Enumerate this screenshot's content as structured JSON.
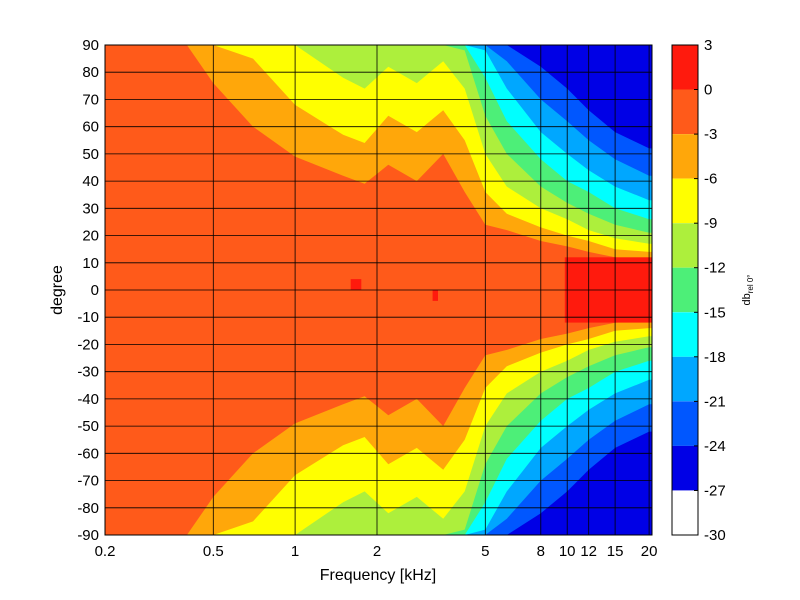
{
  "chart_data": {
    "type": "heatmap",
    "xlabel": "Frequency [kHz]",
    "ylabel": "degree",
    "x_scale": "log",
    "xlim": [
      0.2,
      20.5
    ],
    "ylim": [
      -90,
      90
    ],
    "x_ticks": [
      0.2,
      0.5,
      1,
      2,
      5,
      8,
      10,
      12,
      15,
      20
    ],
    "x_tick_labels": [
      "0.2",
      "0.5",
      "1",
      "2",
      "5",
      "8",
      "10",
      "12",
      "15",
      "20"
    ],
    "y_ticks": [
      90,
      80,
      70,
      60,
      50,
      40,
      30,
      20,
      10,
      0,
      -10,
      -20,
      -30,
      -40,
      -50,
      -60,
      -70,
      -80,
      -90
    ],
    "y_tick_labels": [
      "90",
      "80",
      "70",
      "60",
      "50",
      "40",
      "30",
      "20",
      "10",
      "0",
      "-10",
      "-20",
      "-30",
      "-40",
      "-50",
      "-60",
      "-70",
      "-80",
      "-90"
    ],
    "grid": true,
    "colorbar": {
      "label": "db",
      "label_sub": "rel 0°",
      "levels": [
        3,
        0,
        -3,
        -6,
        -9,
        -12,
        -15,
        -18,
        -21,
        -24,
        -27,
        -30
      ],
      "level_labels": [
        "3",
        "0",
        "-3",
        "-6",
        "-9",
        "-12",
        "-15",
        "-18",
        "-21",
        "-24",
        "-27",
        "-30"
      ],
      "band_colors": [
        "#ff1a0d",
        "#ff5a1a",
        "#ffa70a",
        "#ffff00",
        "#adef3c",
        "#4def78",
        "#00ffff",
        "#00a7ff",
        "#0057ff",
        "#0000e6",
        "#ffffff"
      ]
    },
    "beamwidth_contours_deg": {
      "freq_khz": [
        0.2,
        0.3,
        0.4,
        0.5,
        0.7,
        1,
        1.5,
        1.8,
        2.2,
        2.8,
        3.5,
        4.2,
        5,
        6,
        8,
        10,
        12,
        15,
        20
      ],
      "minus3db": [
        90,
        90,
        90,
        76,
        60,
        49,
        42,
        39,
        46,
        40,
        50,
        36,
        24,
        22,
        18,
        16,
        14,
        12,
        11
      ],
      "minus6db": [
        90,
        90,
        90,
        90,
        85,
        68,
        57,
        54,
        64,
        58,
        66,
        55,
        36,
        28,
        23,
        20,
        18,
        15,
        14
      ],
      "minus9db": [
        90,
        90,
        90,
        90,
        90,
        90,
        78,
        74,
        82,
        76,
        84,
        74,
        50,
        38,
        30,
        26,
        22,
        19,
        17
      ],
      "minus12db": [
        90,
        90,
        90,
        90,
        90,
        90,
        90,
        90,
        90,
        90,
        90,
        88,
        64,
        50,
        38,
        32,
        28,
        24,
        21
      ],
      "minus15db": [
        90,
        90,
        90,
        90,
        90,
        90,
        90,
        90,
        90,
        90,
        90,
        90,
        78,
        62,
        48,
        40,
        36,
        30,
        26
      ],
      "minus18db": [
        90,
        90,
        90,
        90,
        90,
        90,
        90,
        90,
        90,
        90,
        90,
        90,
        88,
        74,
        58,
        50,
        44,
        38,
        33
      ],
      "minus21db": [
        90,
        90,
        90,
        90,
        90,
        90,
        90,
        90,
        90,
        90,
        90,
        90,
        90,
        84,
        70,
        62,
        55,
        48,
        42
      ],
      "minus24db": [
        90,
        90,
        90,
        90,
        90,
        90,
        90,
        90,
        90,
        90,
        90,
        90,
        90,
        90,
        82,
        74,
        66,
        58,
        52
      ]
    },
    "above_0db_regions": [
      {
        "freq_khz": [
          1.6,
          1.75
        ],
        "deg": [
          0,
          4
        ]
      },
      {
        "freq_khz": [
          3.2,
          3.35
        ],
        "deg": [
          -4,
          0
        ]
      },
      {
        "freq_khz": [
          9.8,
          20.5
        ],
        "deg": [
          -12,
          12
        ]
      }
    ]
  }
}
